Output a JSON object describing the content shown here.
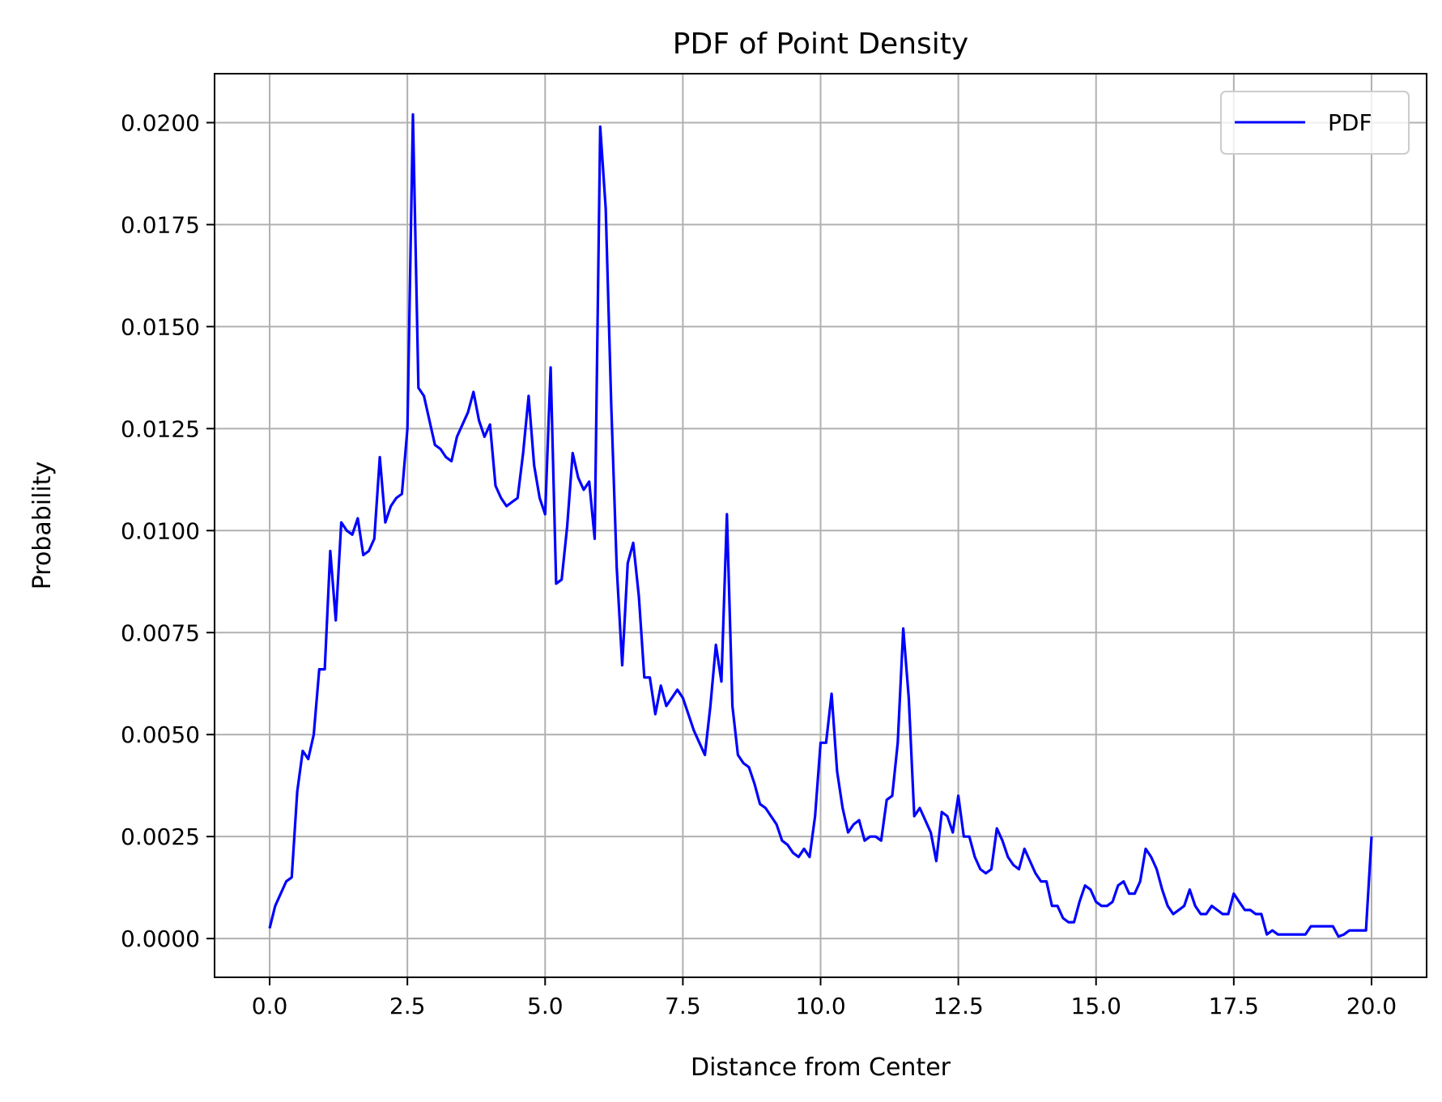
{
  "chart_data": {
    "type": "line",
    "title": "PDF of Point Density",
    "xlabel": "Distance from Center",
    "ylabel": "Probability",
    "xlim": [
      -1.0,
      21.0
    ],
    "ylim": [
      -0.00095,
      0.0212
    ],
    "xticks": [
      "0.0",
      "2.5",
      "5.0",
      "7.5",
      "10.0",
      "12.5",
      "15.0",
      "17.5",
      "20.0"
    ],
    "yticks": [
      "0.0000",
      "0.0025",
      "0.0050",
      "0.0075",
      "0.0100",
      "0.0125",
      "0.0150",
      "0.0175",
      "0.0200"
    ],
    "grid": true,
    "legend": {
      "position": "top-right",
      "entries": [
        "PDF"
      ]
    },
    "colors": {
      "line": "#0000ff",
      "grid": "#b0b0b0"
    },
    "series": [
      {
        "name": "PDF",
        "x": [
          0.0,
          0.1,
          0.2,
          0.3,
          0.4,
          0.5,
          0.6,
          0.7,
          0.8,
          0.9,
          1.0,
          1.1,
          1.2,
          1.3,
          1.4,
          1.5,
          1.6,
          1.7,
          1.8,
          1.9,
          2.0,
          2.1,
          2.2,
          2.3,
          2.4,
          2.5,
          2.6,
          2.7,
          2.8,
          2.9,
          3.0,
          3.1,
          3.2,
          3.3,
          3.4,
          3.5,
          3.6,
          3.7,
          3.8,
          3.9,
          4.0,
          4.1,
          4.2,
          4.3,
          4.4,
          4.5,
          4.6,
          4.7,
          4.8,
          4.9,
          5.0,
          5.1,
          5.2,
          5.3,
          5.4,
          5.5,
          5.6,
          5.7,
          5.8,
          5.9,
          6.0,
          6.1,
          6.2,
          6.3,
          6.4,
          6.5,
          6.6,
          6.7,
          6.8,
          6.9,
          7.0,
          7.1,
          7.2,
          7.3,
          7.4,
          7.5,
          7.6,
          7.7,
          7.8,
          7.9,
          8.0,
          8.1,
          8.2,
          8.3,
          8.4,
          8.5,
          8.6,
          8.7,
          8.8,
          8.9,
          9.0,
          9.1,
          9.2,
          9.3,
          9.4,
          9.5,
          9.6,
          9.7,
          9.8,
          9.9,
          10.0,
          10.1,
          10.2,
          10.3,
          10.4,
          10.5,
          10.6,
          10.7,
          10.8,
          10.9,
          11.0,
          11.1,
          11.2,
          11.3,
          11.4,
          11.5,
          11.6,
          11.7,
          11.8,
          11.9,
          12.0,
          12.1,
          12.2,
          12.3,
          12.4,
          12.5,
          12.6,
          12.7,
          12.8,
          12.9,
          13.0,
          13.1,
          13.2,
          13.3,
          13.4,
          13.5,
          13.6,
          13.7,
          13.8,
          13.9,
          14.0,
          14.1,
          14.2,
          14.3,
          14.4,
          14.5,
          14.6,
          14.7,
          14.8,
          14.9,
          15.0,
          15.1,
          15.2,
          15.3,
          15.4,
          15.5,
          15.6,
          15.7,
          15.8,
          15.9,
          16.0,
          16.1,
          16.2,
          16.3,
          16.4,
          16.5,
          16.6,
          16.7,
          16.8,
          16.9,
          17.0,
          17.1,
          17.2,
          17.3,
          17.4,
          17.5,
          17.6,
          17.7,
          17.8,
          17.9,
          18.0,
          18.1,
          18.2,
          18.3,
          18.4,
          18.5,
          18.6,
          18.7,
          18.8,
          18.9,
          19.0,
          19.1,
          19.2,
          19.3,
          19.4,
          19.5,
          19.6,
          19.7,
          19.8,
          19.9,
          20.0
        ],
        "y": [
          0.00025,
          0.0008,
          0.0011,
          0.0014,
          0.0015,
          0.0036,
          0.0046,
          0.0044,
          0.005,
          0.0066,
          0.0066,
          0.0095,
          0.0078,
          0.0102,
          0.01,
          0.0099,
          0.0103,
          0.0094,
          0.0095,
          0.0098,
          0.0118,
          0.0102,
          0.0106,
          0.0108,
          0.0109,
          0.0125,
          0.0202,
          0.0135,
          0.0133,
          0.0127,
          0.0121,
          0.012,
          0.0118,
          0.0117,
          0.0123,
          0.0126,
          0.0129,
          0.0134,
          0.0127,
          0.0123,
          0.0126,
          0.0111,
          0.0108,
          0.0106,
          0.0107,
          0.0108,
          0.0119,
          0.0133,
          0.0116,
          0.0108,
          0.0104,
          0.014,
          0.0087,
          0.0088,
          0.0101,
          0.0119,
          0.0113,
          0.011,
          0.0112,
          0.0098,
          0.0199,
          0.0179,
          0.0131,
          0.0091,
          0.0067,
          0.0092,
          0.0097,
          0.0084,
          0.0064,
          0.0064,
          0.0055,
          0.0062,
          0.0057,
          0.0059,
          0.0061,
          0.0059,
          0.0055,
          0.0051,
          0.0048,
          0.0045,
          0.0057,
          0.0072,
          0.0063,
          0.0104,
          0.0057,
          0.0045,
          0.0043,
          0.0042,
          0.0038,
          0.0033,
          0.0032,
          0.003,
          0.0028,
          0.0024,
          0.0023,
          0.0021,
          0.002,
          0.0022,
          0.002,
          0.003,
          0.0048,
          0.0048,
          0.006,
          0.0041,
          0.0032,
          0.0026,
          0.0028,
          0.0029,
          0.0024,
          0.0025,
          0.0025,
          0.0024,
          0.0034,
          0.0035,
          0.0048,
          0.0076,
          0.0059,
          0.003,
          0.0032,
          0.0029,
          0.0026,
          0.0019,
          0.0031,
          0.003,
          0.0026,
          0.0035,
          0.0025,
          0.0025,
          0.002,
          0.0017,
          0.0016,
          0.0017,
          0.0027,
          0.0024,
          0.002,
          0.0018,
          0.0017,
          0.0022,
          0.0019,
          0.0016,
          0.0014,
          0.0014,
          0.0008,
          0.0008,
          0.0005,
          0.0004,
          0.0004,
          0.0009,
          0.0013,
          0.0012,
          0.0009,
          0.0008,
          0.0008,
          0.0009,
          0.0013,
          0.0014,
          0.0011,
          0.0011,
          0.0014,
          0.0022,
          0.002,
          0.0017,
          0.0012,
          0.0008,
          0.0006,
          0.0007,
          0.0008,
          0.0012,
          0.0008,
          0.0006,
          0.0006,
          0.0008,
          0.0007,
          0.0006,
          0.0006,
          0.0011,
          0.0009,
          0.0007,
          0.0007,
          0.0006,
          0.0006,
          0.0001,
          0.0002,
          0.0001,
          0.0001,
          0.0001,
          0.0001,
          0.0001,
          0.0001,
          0.0003,
          0.0003,
          0.0003,
          0.0003,
          0.0003,
          5e-05,
          0.0001,
          0.0002,
          0.0002,
          0.0002,
          0.0002,
          0.0025
        ]
      }
    ]
  }
}
